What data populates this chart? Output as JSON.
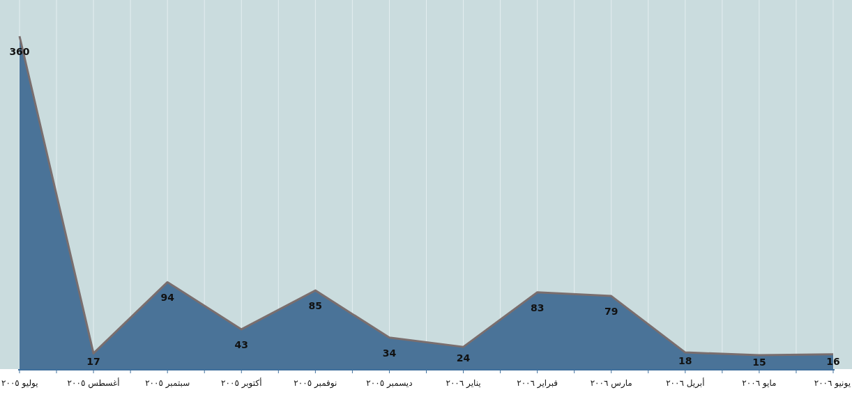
{
  "chart_data": {
    "type": "area",
    "categories": [
      "يوليو ٢٠٠٥",
      "أغسطس ٢٠٠٥",
      "سبتمبر ٢٠٠٥",
      "أكتوبر ٢٠٠٥",
      "نوفمبر ٢٠٠٥",
      "ديسمبر ٢٠٠٥",
      "يناير ٢٠٠٦",
      "فبراير ٢٠٠٦",
      "مارس ٢٠٠٦",
      "أبريل ٢٠٠٦",
      "مايو ٢٠٠٦",
      "يونيو ٢٠٠٦"
    ],
    "series": [
      {
        "color": "#4a7398",
        "values": [
          360,
          17,
          94,
          43,
          85,
          34,
          24,
          83,
          79,
          18,
          15,
          16
        ]
      }
    ],
    "data_labels": true,
    "grid": "x"
  }
}
